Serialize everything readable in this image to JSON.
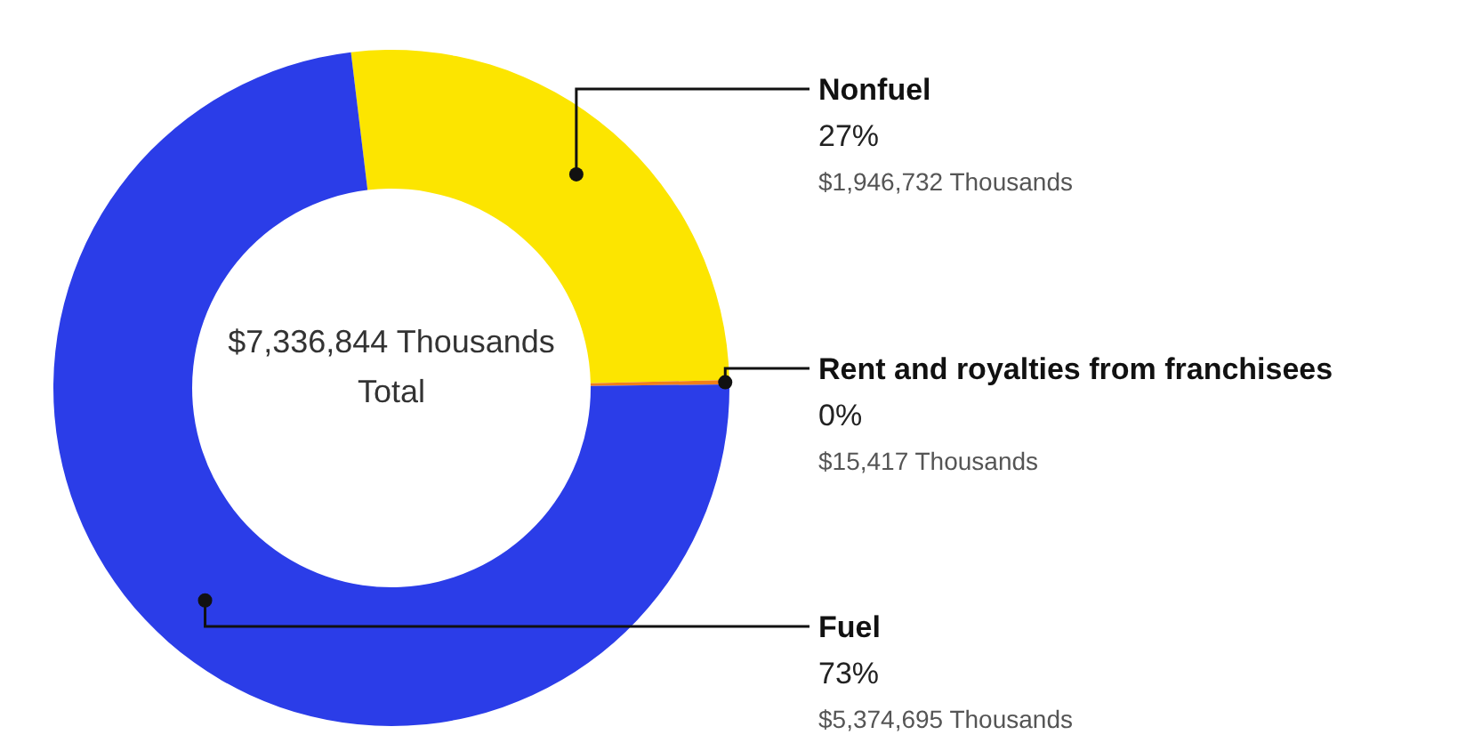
{
  "chart_data": {
    "type": "donut",
    "categories": [
      "Nonfuel",
      "Rent and royalties from franchisees",
      "Fuel"
    ],
    "values": [
      1946732,
      15417,
      5374695
    ],
    "colors": [
      "#fce500",
      "#f07f1a",
      "#2b3de8"
    ],
    "value_labels": [
      "27%\n$1,946,732 Thousands",
      "0%\n$15,417 Thousands",
      "73%\n$5,374,695 Thousands"
    ],
    "annotations": [
      "$7,336,844 Thousands",
      "Total"
    ],
    "legend": false
  }
}
